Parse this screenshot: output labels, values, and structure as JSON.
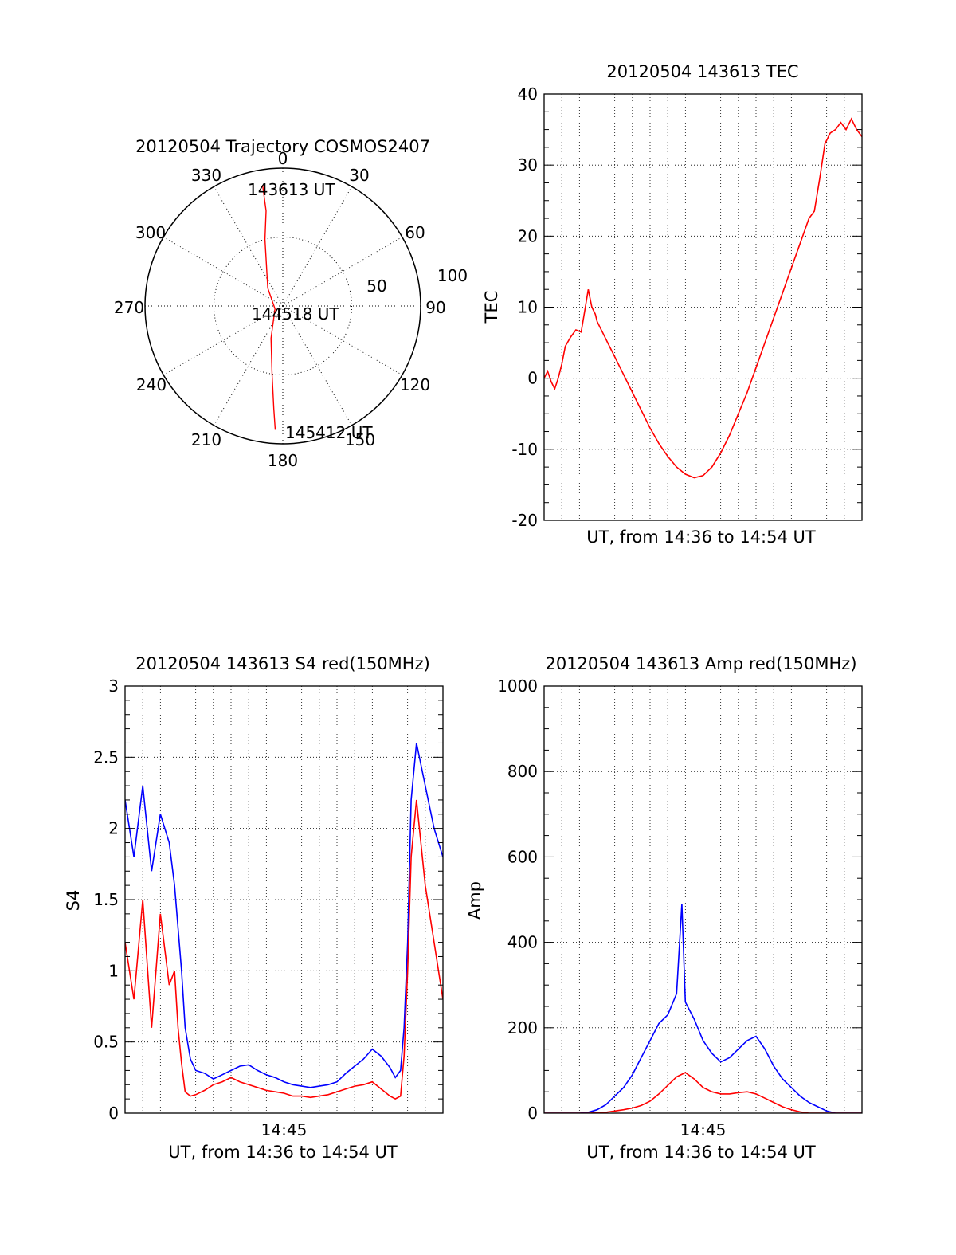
{
  "chart_data": [
    {
      "type": "polar",
      "title": "20120504 Trajectory COSMOS2407",
      "angle_labels": [
        "0",
        "30",
        "60",
        "90",
        "120",
        "150",
        "180",
        "210",
        "240",
        "270",
        "300",
        "330"
      ],
      "ring_labels": [
        "50",
        "100"
      ],
      "rmax": 100,
      "series": [
        {
          "color": "#ff0000",
          "points": [
            {
              "az": 350.5,
              "r": 89
            },
            {
              "az": 350,
              "r": 70
            },
            {
              "az": 345,
              "r": 50
            },
            {
              "az": 320,
              "r": 17
            },
            {
              "az": 250,
              "r": 6
            },
            {
              "az": 200,
              "r": 25
            },
            {
              "az": 189,
              "r": 50
            },
            {
              "az": 185,
              "r": 75
            },
            {
              "az": 183.5,
              "r": 90
            }
          ]
        }
      ],
      "annotations": [
        {
          "text": "143613 UT",
          "az": 348,
          "r": 89
        },
        {
          "text": "144518 UT",
          "az": 0,
          "r": 0
        },
        {
          "text": "145412 UT",
          "az": 183,
          "r": 90
        }
      ]
    },
    {
      "type": "line",
      "title": "20120504 143613 TEC",
      "xlabel": "UT, from 14:36 to 14:54 UT",
      "ylabel": "TEC",
      "xlim": [
        0,
        18.0
      ],
      "ylim": [
        -20,
        40
      ],
      "yticks": [
        -20,
        -10,
        0,
        10,
        20,
        30,
        40
      ],
      "xticks": [],
      "grid": true,
      "series": [
        {
          "color": "#ff0000",
          "x": [
            0,
            0.2,
            0.4,
            0.6,
            0.8,
            1.0,
            1.2,
            1.5,
            1.8,
            2.1,
            2.3,
            2.5,
            2.7,
            2.9,
            3.0,
            3.2,
            3.4,
            3.6,
            4.0,
            4.5,
            5.0,
            5.5,
            6.0,
            6.5,
            7.0,
            7.5,
            8.0,
            8.5,
            9.0,
            9.5,
            10.0,
            10.5,
            11.0,
            11.5,
            12.0,
            12.5,
            13.0,
            13.5,
            14.0,
            14.5,
            15.0,
            15.3,
            15.6,
            15.9,
            16.2,
            16.5,
            16.8,
            17.1,
            17.4,
            17.7,
            18.0
          ],
          "y": [
            0,
            1,
            -0.5,
            -1.5,
            0,
            2,
            4.5,
            5.8,
            6.8,
            6.5,
            9.5,
            12.5,
            10,
            9,
            8,
            7,
            6,
            5,
            3,
            0.5,
            -2,
            -4.5,
            -7,
            -9.2,
            -11,
            -12.5,
            -13.5,
            -14,
            -13.7,
            -12.5,
            -10.5,
            -8,
            -5,
            -2,
            1.5,
            5,
            8.5,
            12,
            15.5,
            19,
            22.5,
            23.5,
            28,
            33,
            34.5,
            35,
            36,
            35,
            36.5,
            35,
            34
          ]
        }
      ]
    },
    {
      "type": "line",
      "title": "20120504 143613 S4 red(150MHz)",
      "xlabel": "UT, from 14:36 to 14:54 UT",
      "ylabel": "S4",
      "xlim": [
        0,
        18.0
      ],
      "ylim": [
        0,
        3
      ],
      "yticks": [
        0,
        0.5,
        1,
        1.5,
        2,
        2.5,
        3
      ],
      "xticks": [
        {
          "value": 9.0,
          "label": "14:45"
        }
      ],
      "grid": true,
      "series": [
        {
          "color": "#0000ff",
          "x": [
            0,
            0.5,
            1.0,
            1.5,
            2.0,
            2.5,
            2.8,
            3.0,
            3.2,
            3.4,
            3.7,
            4.0,
            4.5,
            5.0,
            5.5,
            6.0,
            6.5,
            7.0,
            7.5,
            8.0,
            8.5,
            9.0,
            9.5,
            10.0,
            10.5,
            11.0,
            11.5,
            12.0,
            12.5,
            13.0,
            13.5,
            14.0,
            14.5,
            15.0,
            15.3,
            15.6,
            15.8,
            16.0,
            16.2,
            16.5,
            17.0,
            17.5,
            18.0
          ],
          "y": [
            2.2,
            1.8,
            2.3,
            1.7,
            2.1,
            1.9,
            1.6,
            1.3,
            1.0,
            0.6,
            0.38,
            0.3,
            0.28,
            0.24,
            0.27,
            0.3,
            0.33,
            0.34,
            0.3,
            0.27,
            0.25,
            0.22,
            0.2,
            0.19,
            0.18,
            0.19,
            0.2,
            0.22,
            0.28,
            0.33,
            0.38,
            0.45,
            0.4,
            0.32,
            0.25,
            0.3,
            0.6,
            1.2,
            2.2,
            2.6,
            2.3,
            2.0,
            1.8
          ]
        },
        {
          "color": "#ff0000",
          "x": [
            0,
            0.5,
            1.0,
            1.5,
            2.0,
            2.5,
            2.8,
            3.0,
            3.2,
            3.4,
            3.7,
            4.0,
            4.5,
            5.0,
            5.5,
            6.0,
            6.5,
            7.0,
            7.5,
            8.0,
            8.5,
            9.0,
            9.5,
            10.0,
            10.5,
            11.0,
            11.5,
            12.0,
            12.5,
            13.0,
            13.5,
            14.0,
            14.5,
            15.0,
            15.3,
            15.6,
            15.8,
            16.0,
            16.2,
            16.5,
            17.0,
            17.5,
            18.0
          ],
          "y": [
            1.2,
            0.8,
            1.5,
            0.6,
            1.4,
            0.9,
            1.0,
            0.6,
            0.35,
            0.15,
            0.12,
            0.13,
            0.16,
            0.2,
            0.22,
            0.25,
            0.22,
            0.2,
            0.18,
            0.16,
            0.15,
            0.14,
            0.12,
            0.12,
            0.11,
            0.12,
            0.13,
            0.15,
            0.17,
            0.19,
            0.2,
            0.22,
            0.17,
            0.12,
            0.1,
            0.12,
            0.4,
            1.0,
            1.8,
            2.2,
            1.6,
            1.2,
            0.8
          ]
        }
      ]
    },
    {
      "type": "line",
      "title": "20120504 143613 Amp red(150MHz)",
      "xlabel": "UT, from 14:36 to 14:54 UT",
      "ylabel": "Amp",
      "xlim": [
        0,
        18.0
      ],
      "ylim": [
        0,
        1000
      ],
      "yticks": [
        0,
        200,
        400,
        600,
        800,
        1000
      ],
      "xticks": [
        {
          "value": 9.0,
          "label": "14:45"
        }
      ],
      "grid": true,
      "series": [
        {
          "color": "#0000ff",
          "x": [
            0,
            2.0,
            2.5,
            3.0,
            3.5,
            4.0,
            4.5,
            5.0,
            5.5,
            6.0,
            6.5,
            7.0,
            7.5,
            7.8,
            8.0,
            8.5,
            9.0,
            9.5,
            10.0,
            10.5,
            11.0,
            11.5,
            12.0,
            12.5,
            13.0,
            13.5,
            14.0,
            14.5,
            15.0,
            15.5,
            16.0,
            16.5,
            18.0
          ],
          "y": [
            0,
            0,
            2,
            8,
            20,
            40,
            60,
            90,
            130,
            170,
            210,
            230,
            280,
            490,
            260,
            220,
            170,
            140,
            120,
            130,
            150,
            170,
            180,
            150,
            110,
            80,
            60,
            40,
            25,
            15,
            5,
            0,
            0
          ]
        },
        {
          "color": "#ff0000",
          "x": [
            0,
            2.5,
            3.5,
            4.0,
            4.5,
            5.0,
            5.5,
            6.0,
            6.5,
            7.0,
            7.5,
            8.0,
            8.5,
            9.0,
            9.5,
            10.0,
            10.5,
            11.0,
            11.5,
            12.0,
            12.5,
            13.0,
            13.5,
            14.0,
            14.5,
            15.0,
            18.0
          ],
          "y": [
            0,
            0,
            2,
            5,
            8,
            12,
            18,
            28,
            45,
            65,
            85,
            95,
            80,
            60,
            50,
            45,
            45,
            48,
            50,
            45,
            35,
            25,
            15,
            8,
            3,
            0,
            0
          ]
        }
      ]
    }
  ]
}
